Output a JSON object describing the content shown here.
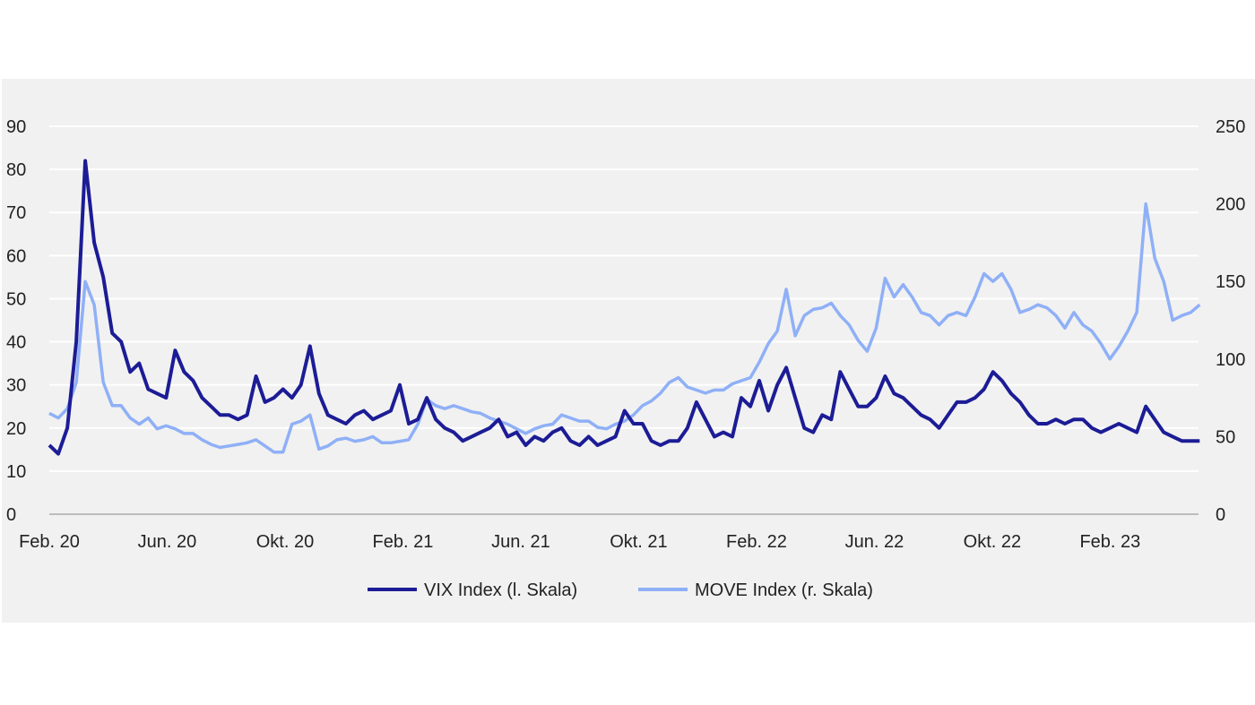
{
  "chart_data": {
    "type": "line",
    "title": "",
    "x_unit": "months since Feb. 2020",
    "x_step_months": 0.305,
    "xlim": [
      0,
      39
    ],
    "x_ticks": [
      {
        "label": "Feb. 20",
        "month": 0
      },
      {
        "label": "Jun. 20",
        "month": 4
      },
      {
        "label": "Okt. 20",
        "month": 8
      },
      {
        "label": "Feb. 21",
        "month": 12
      },
      {
        "label": "Jun. 21",
        "month": 16
      },
      {
        "label": "Okt. 21",
        "month": 20
      },
      {
        "label": "Feb. 22",
        "month": 24
      },
      {
        "label": "Jun. 22",
        "month": 28
      },
      {
        "label": "Okt. 22",
        "month": 32
      },
      {
        "label": "Feb. 23",
        "month": 36
      }
    ],
    "y_left": {
      "ylim": [
        0,
        90
      ],
      "ticks": [
        "0",
        "10",
        "20",
        "30",
        "40",
        "50",
        "60",
        "70",
        "80",
        "90"
      ]
    },
    "y_right": {
      "ylim": [
        0,
        250
      ],
      "ticks": [
        "0",
        "50",
        "100",
        "150",
        "200",
        "250"
      ]
    },
    "grid": true,
    "legend_position": "bottom-center",
    "series": [
      {
        "name": "VIX Index (l. Skala)",
        "axis": "left",
        "color": "#1c1c96",
        "values": [
          16,
          14,
          20,
          40,
          82,
          63,
          55,
          42,
          40,
          33,
          35,
          29,
          28,
          27,
          38,
          33,
          31,
          27,
          25,
          23,
          23,
          22,
          23,
          32,
          26,
          27,
          29,
          27,
          30,
          39,
          28,
          23,
          22,
          21,
          23,
          24,
          22,
          23,
          24,
          30,
          21,
          22,
          27,
          22,
          20,
          19,
          17,
          18,
          19,
          20,
          22,
          18,
          19,
          16,
          18,
          17,
          19,
          20,
          17,
          16,
          18,
          16,
          17,
          18,
          24,
          21,
          21,
          17,
          16,
          17,
          17,
          20,
          26,
          22,
          18,
          19,
          18,
          27,
          25,
          31,
          24,
          30,
          34,
          27,
          20,
          19,
          23,
          22,
          33,
          29,
          25,
          25,
          27,
          32,
          28,
          27,
          25,
          23,
          22,
          20,
          23,
          26,
          26,
          27,
          29,
          33,
          31,
          28,
          26,
          23,
          21,
          21,
          22,
          21,
          22,
          22,
          20,
          19,
          20,
          21,
          20,
          19,
          25,
          22,
          19,
          18,
          17,
          17,
          17
        ]
      },
      {
        "name": "MOVE Index (r. Skala)",
        "axis": "right",
        "color": "#8fb0f7",
        "values": [
          65,
          62,
          68,
          85,
          150,
          135,
          85,
          70,
          70,
          62,
          58,
          62,
          55,
          57,
          55,
          52,
          52,
          48,
          45,
          43,
          44,
          45,
          46,
          48,
          44,
          40,
          40,
          58,
          60,
          64,
          42,
          44,
          48,
          49,
          47,
          48,
          50,
          46,
          46,
          47,
          48,
          58,
          74,
          70,
          68,
          70,
          68,
          66,
          65,
          62,
          60,
          58,
          55,
          52,
          55,
          57,
          58,
          64,
          62,
          60,
          60,
          56,
          55,
          58,
          60,
          64,
          70,
          73,
          78,
          85,
          88,
          82,
          80,
          78,
          80,
          80,
          84,
          86,
          88,
          98,
          110,
          118,
          145,
          115,
          128,
          132,
          133,
          136,
          128,
          122,
          112,
          105,
          120,
          152,
          140,
          148,
          140,
          130,
          128,
          122,
          128,
          130,
          128,
          140,
          155,
          150,
          155,
          145,
          130,
          132,
          135,
          133,
          128,
          120,
          130,
          122,
          118,
          110,
          100,
          108,
          118,
          130,
          200,
          165,
          150,
          125,
          128,
          130,
          135
        ]
      }
    ]
  }
}
